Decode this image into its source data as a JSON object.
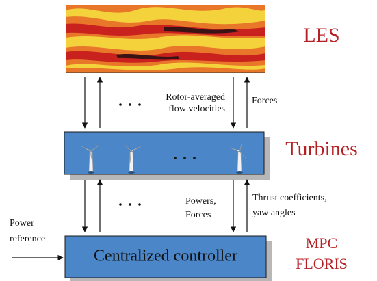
{
  "layers": {
    "les": "LES",
    "turbines": "Turbines",
    "mpc": "MPC",
    "floris": "FLORIS"
  },
  "upper_link": {
    "down_label": [
      "Rotor-averaged",
      "flow velocities"
    ],
    "up_label": "Forces"
  },
  "lower_link": {
    "up_label": [
      "Powers,",
      "Forces"
    ],
    "down_label": [
      "Thrust coefficients,",
      "yaw angles"
    ]
  },
  "input": [
    "Power",
    "reference"
  ],
  "controller": "Centralized controller"
}
